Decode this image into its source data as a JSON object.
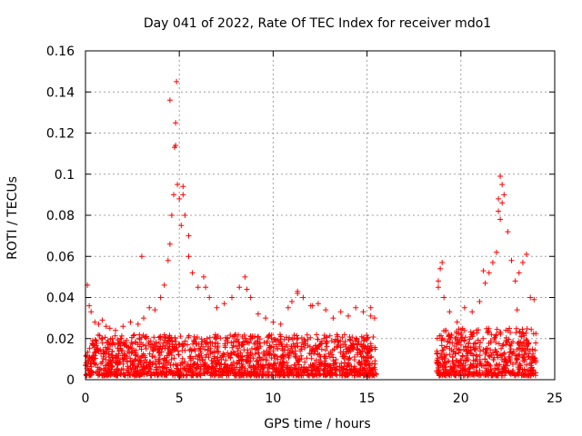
{
  "chart_data": {
    "type": "scatter",
    "title": "Day 041 of 2022, Rate Of TEC Index for receiver mdo1",
    "xlabel": "GPS time / hours",
    "ylabel": "ROTI / TECUs",
    "xlim": [
      0,
      25
    ],
    "ylim": [
      0,
      0.16
    ],
    "xticks": [
      0,
      5,
      10,
      15,
      20,
      25
    ],
    "xtick_labels": [
      "0",
      "5",
      "10",
      "15",
      "20",
      "25"
    ],
    "yticks": [
      0,
      0.02,
      0.04,
      0.06,
      0.08,
      0.1,
      0.12,
      0.14,
      0.16
    ],
    "ytick_labels": [
      "0",
      "0.02",
      "0.04",
      "0.06",
      "0.08",
      "0.1",
      "0.12",
      "0.14",
      "0.16"
    ],
    "grid": true,
    "marker": "plus",
    "color": "#ff0000",
    "series": [
      {
        "x": [
          0.1,
          0.2,
          0.3,
          0.5,
          0.7,
          0.9,
          1.1,
          1.3,
          1.6,
          2.0,
          2.4,
          2.8,
          3.1,
          3.4,
          3.7,
          4.0,
          4.2,
          4.4,
          4.5,
          4.6,
          4.7,
          4.75,
          4.8,
          4.85,
          4.9,
          5.0,
          5.1,
          5.2,
          5.3,
          5.5,
          5.7,
          6.0,
          6.3,
          6.6,
          7.0,
          7.4,
          7.8,
          8.2,
          8.5,
          8.8,
          9.2,
          9.6,
          10.0,
          10.4,
          10.8,
          11.0,
          11.3,
          11.6,
          12.0,
          12.4,
          12.8,
          13.2,
          13.6,
          14.0,
          14.4,
          14.8,
          15.2,
          15.4,
          18.8,
          18.9,
          19.0,
          19.1,
          19.4,
          19.8,
          20.2,
          20.6,
          21.0,
          21.3,
          21.5,
          21.7,
          21.9,
          22.0,
          22.1,
          22.2,
          22.3,
          22.5,
          22.7,
          22.9,
          23.1,
          23.3,
          23.5,
          23.7,
          23.9,
          3.0,
          4.5,
          4.8,
          5.2,
          5.5,
          6.4,
          8.6,
          11.3,
          12.1,
          15.2,
          18.8,
          22.0,
          22.1,
          22.2,
          21.2,
          23.0
        ],
        "y": [
          0.046,
          0.036,
          0.033,
          0.028,
          0.027,
          0.029,
          0.026,
          0.025,
          0.024,
          0.026,
          0.028,
          0.027,
          0.03,
          0.035,
          0.034,
          0.04,
          0.046,
          0.058,
          0.066,
          0.08,
          0.09,
          0.113,
          0.125,
          0.145,
          0.095,
          0.088,
          0.075,
          0.09,
          0.08,
          0.06,
          0.052,
          0.045,
          0.05,
          0.04,
          0.035,
          0.037,
          0.04,
          0.045,
          0.05,
          0.04,
          0.032,
          0.03,
          0.028,
          0.027,
          0.035,
          0.038,
          0.043,
          0.04,
          0.036,
          0.037,
          0.034,
          0.03,
          0.033,
          0.031,
          0.035,
          0.033,
          0.031,
          0.03,
          0.048,
          0.054,
          0.057,
          0.04,
          0.033,
          0.028,
          0.035,
          0.033,
          0.038,
          0.047,
          0.052,
          0.057,
          0.062,
          0.082,
          0.099,
          0.095,
          0.09,
          0.072,
          0.058,
          0.048,
          0.052,
          0.057,
          0.061,
          0.04,
          0.039,
          0.06,
          0.136,
          0.114,
          0.094,
          0.07,
          0.045,
          0.044,
          0.042,
          0.036,
          0.035,
          0.045,
          0.088,
          0.078,
          0.086,
          0.053,
          0.034
        ]
      }
    ],
    "dense_bands": [
      {
        "x_start": 0.0,
        "x_end": 15.5,
        "y_min": 0.002,
        "y_max": 0.022
      },
      {
        "x_start": 18.7,
        "x_end": 24.0,
        "y_min": 0.002,
        "y_max": 0.025
      }
    ]
  }
}
